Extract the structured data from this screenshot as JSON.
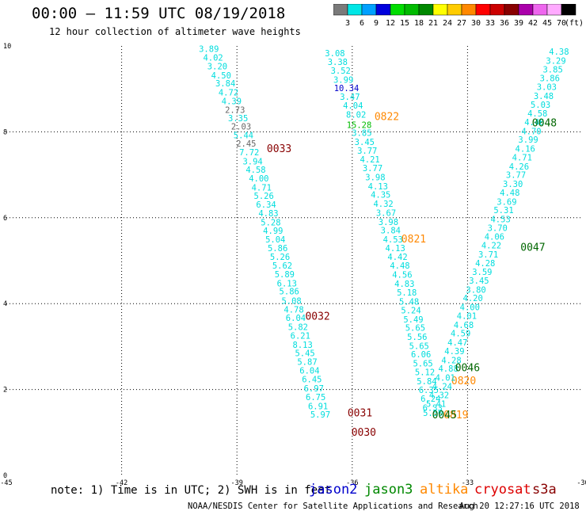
{
  "header": {
    "title": "00:00 — 11:59 UTC 08/19/2018",
    "subtitle": "12 hour collection of altimeter wave heights"
  },
  "color_scale": {
    "labels": [
      "3",
      "6",
      "9",
      "12",
      "15",
      "18",
      "21",
      "24",
      "27",
      "30",
      "33",
      "36",
      "39",
      "42",
      "45",
      "70"
    ],
    "unit": "(ft)",
    "colors": [
      "#7a7a7a",
      "#00e6e6",
      "#00a0ff",
      "#0000dd",
      "#00dd00",
      "#00bb00",
      "#008800",
      "#ffff00",
      "#ffcc00",
      "#ff8800",
      "#ff0000",
      "#cc0000",
      "#880000",
      "#aa00aa",
      "#ee66ee",
      "#ffaaff",
      "#000000"
    ]
  },
  "footer": {
    "note": "note: 1) Time is in UTC; 2) SWH is in feet",
    "satellites": [
      {
        "name": "jason2",
        "color": "#0000cc"
      },
      {
        "name": "jason3",
        "color": "#008800"
      },
      {
        "name": "altika",
        "color": "#ff8800"
      },
      {
        "name": "cryosat",
        "color": "#dd0000"
      },
      {
        "name": "s3a",
        "color": "#880000"
      }
    ],
    "credit": "NOAA/NESDIS Center for Satellite Applications and Research",
    "stamp": "Aug 20 12:27:16 UTC 2018"
  },
  "chart_data": {
    "type": "scatter",
    "title": "12 hour collection of altimeter wave heights",
    "xlim": [
      -45,
      -30
    ],
    "ylim": [
      0,
      10
    ],
    "x_ticks": [
      -45,
      -42,
      -39,
      -36,
      -33,
      -30
    ],
    "y_ticks": [
      0,
      2,
      4,
      6,
      8,
      10
    ],
    "grid": true,
    "colors": {
      "cyan": "#00dddd",
      "gray": "#666666",
      "blue": "#0000cc",
      "lgreen": "#00bb00",
      "dgreen": "#006600",
      "orange": "#ff8800",
      "dred": "#880000"
    },
    "series": [
      {
        "name": "0033",
        "color": "cyan",
        "points": [
          [
            -39.73,
            9.92,
            "3.89"
          ],
          [
            -39.62,
            9.71,
            "4.02"
          ],
          [
            -39.51,
            9.51,
            "3.20"
          ],
          [
            -39.41,
            9.3,
            "4.50"
          ],
          [
            -39.3,
            9.11,
            "3.84"
          ],
          [
            -39.22,
            8.9,
            "4.72"
          ],
          [
            -39.14,
            8.7,
            "4.39"
          ],
          [
            -39.05,
            8.5,
            "2.73"
          ],
          [
            -38.97,
            8.3,
            "3.35"
          ],
          [
            -38.89,
            8.11,
            "2.03"
          ],
          [
            -38.83,
            7.91,
            "5.44"
          ],
          [
            -38.76,
            7.71,
            "2.45"
          ],
          [
            -38.68,
            7.51,
            "7.72"
          ],
          [
            -38.59,
            7.3,
            "3.94"
          ],
          [
            -38.51,
            7.1,
            "4.58"
          ],
          [
            -38.43,
            6.9,
            "4.00"
          ],
          [
            -38.36,
            6.69,
            "4.71"
          ],
          [
            -38.3,
            6.49,
            "5.26"
          ],
          [
            -38.24,
            6.29,
            "6.34"
          ],
          [
            -38.18,
            6.09,
            "4.83"
          ],
          [
            -38.12,
            5.88,
            "5.28"
          ],
          [
            -38.06,
            5.68,
            "4.99"
          ],
          [
            -38.0,
            5.48,
            "5.04"
          ],
          [
            -37.94,
            5.28,
            "5.86"
          ],
          [
            -37.88,
            5.07,
            "5.26"
          ],
          [
            -37.82,
            4.87,
            "5.62"
          ],
          [
            -37.76,
            4.67,
            "5.89"
          ],
          [
            -37.7,
            4.46,
            "6.13"
          ],
          [
            -37.64,
            4.27,
            "5.86"
          ],
          [
            -37.58,
            4.05,
            "5.08"
          ],
          [
            -37.52,
            3.85,
            "4.78"
          ],
          [
            -37.47,
            3.65,
            "6.04"
          ],
          [
            -37.41,
            3.44,
            "5.82"
          ],
          [
            -37.35,
            3.24,
            "6.21"
          ],
          [
            -37.29,
            3.03,
            "8.13"
          ],
          [
            -37.23,
            2.83,
            "5.45"
          ],
          [
            -37.17,
            2.63,
            "5.87"
          ],
          [
            -37.11,
            2.43,
            "6.04"
          ],
          [
            -37.05,
            2.22,
            "6.45"
          ],
          [
            -37.0,
            2.01,
            "6.97"
          ],
          [
            -36.95,
            1.81,
            "6.75"
          ],
          [
            -36.89,
            1.6,
            "6.91"
          ],
          [
            -36.83,
            1.4,
            "5.97"
          ]
        ],
        "gray_idx": [
          7,
          9,
          11
        ],
        "label": {
          "text": "0033",
          "x": -37.9,
          "y": 7.6,
          "color": "dred"
        },
        "extra_labels": [
          {
            "text": "0032",
            "x": -36.9,
            "y": 3.7,
            "color": "dred"
          },
          {
            "text": "0031",
            "x": -35.8,
            "y": 1.45,
            "color": "dred"
          },
          {
            "text": "0030",
            "x": -35.7,
            "y": 1.0,
            "color": "dred"
          }
        ]
      },
      {
        "name": "0822",
        "color": "cyan",
        "points": [
          [
            -36.45,
            9.82,
            "3.08"
          ],
          [
            -36.38,
            9.61,
            "3.38"
          ],
          [
            -36.3,
            9.41,
            "3.52"
          ],
          [
            -36.23,
            9.2,
            "3.99"
          ],
          [
            -36.15,
            9.0,
            "10.34"
          ],
          [
            -36.06,
            8.8,
            "3.47"
          ],
          [
            -35.98,
            8.6,
            "4.04"
          ],
          [
            -35.9,
            8.39,
            "8.02"
          ],
          [
            -35.82,
            8.15,
            "15.28"
          ],
          [
            -35.75,
            7.96,
            "3.85"
          ],
          [
            -35.68,
            7.75,
            "3.45"
          ],
          [
            -35.61,
            7.55,
            "3.77"
          ],
          [
            -35.54,
            7.34,
            "4.21"
          ],
          [
            -35.47,
            7.14,
            "3.77"
          ],
          [
            -35.4,
            6.93,
            "3.98"
          ],
          [
            -35.33,
            6.72,
            "4.13"
          ],
          [
            -35.26,
            6.52,
            "4.35"
          ],
          [
            -35.19,
            6.31,
            "4.32"
          ],
          [
            -35.12,
            6.1,
            "3.67"
          ],
          [
            -35.06,
            5.89,
            "3.98"
          ],
          [
            -35.0,
            5.69,
            "3.84"
          ],
          [
            -34.94,
            5.48,
            "4.53"
          ],
          [
            -34.88,
            5.28,
            "4.13"
          ],
          [
            -34.82,
            5.07,
            "4.42"
          ],
          [
            -34.76,
            4.87,
            "4.48"
          ],
          [
            -34.7,
            4.66,
            "4.56"
          ],
          [
            -34.64,
            4.45,
            "4.83"
          ],
          [
            -34.58,
            4.24,
            "5.18"
          ],
          [
            -34.52,
            4.03,
            "5.48"
          ],
          [
            -34.47,
            3.83,
            "5.24"
          ],
          [
            -34.41,
            3.62,
            "5.49"
          ],
          [
            -34.36,
            3.42,
            "5.65"
          ],
          [
            -34.31,
            3.21,
            "5.56"
          ],
          [
            -34.26,
            3.0,
            "5.65"
          ],
          [
            -34.21,
            2.8,
            "6.06"
          ],
          [
            -34.16,
            2.59,
            "5.65"
          ],
          [
            -34.11,
            2.39,
            "5.12"
          ],
          [
            -34.06,
            2.18,
            "5.84"
          ],
          [
            -34.01,
            1.97,
            "6.35"
          ],
          [
            -33.96,
            1.77,
            "6.24"
          ],
          [
            -33.91,
            1.56,
            "6.33"
          ]
        ],
        "blue_idx": [
          4
        ],
        "green_idx": [
          8
        ],
        "label": {
          "text": "0822",
          "x": -35.1,
          "y": 8.35,
          "color": "orange"
        },
        "extra_labels": [
          {
            "text": "0821",
            "x": -34.4,
            "y": 5.5,
            "color": "orange"
          },
          {
            "text": "0820",
            "x": -33.1,
            "y": 2.2,
            "color": "orange"
          },
          {
            "text": "0819",
            "x": -33.3,
            "y": 1.4,
            "color": "orange"
          }
        ]
      },
      {
        "name": "0048",
        "color": "cyan",
        "points": [
          [
            -30.62,
            9.85,
            "4.38"
          ],
          [
            -30.7,
            9.64,
            "3.29"
          ],
          [
            -30.78,
            9.44,
            "3.85"
          ],
          [
            -30.86,
            9.23,
            "3.86"
          ],
          [
            -30.94,
            9.03,
            "3.03"
          ],
          [
            -31.02,
            8.82,
            "3.48"
          ],
          [
            -31.1,
            8.62,
            "5.03"
          ],
          [
            -31.18,
            8.41,
            "4.58"
          ],
          [
            -31.26,
            8.21,
            "4.46"
          ],
          [
            -31.34,
            8.0,
            "4.70"
          ],
          [
            -31.42,
            7.8,
            "3.99"
          ],
          [
            -31.5,
            7.59,
            "4.16"
          ],
          [
            -31.58,
            7.39,
            "4.71"
          ],
          [
            -31.66,
            7.18,
            "4.26"
          ],
          [
            -31.74,
            6.98,
            "3.77"
          ],
          [
            -31.82,
            6.77,
            "3.30"
          ],
          [
            -31.9,
            6.57,
            "4.48"
          ],
          [
            -31.98,
            6.36,
            "3.69"
          ],
          [
            -32.06,
            6.16,
            "5.31"
          ],
          [
            -32.14,
            5.95,
            "4.53"
          ],
          [
            -32.22,
            5.75,
            "3.70"
          ],
          [
            -32.3,
            5.54,
            "4.06"
          ],
          [
            -32.38,
            5.34,
            "4.22"
          ],
          [
            -32.46,
            5.13,
            "3.71"
          ],
          [
            -32.54,
            4.93,
            "4.28"
          ],
          [
            -32.62,
            4.72,
            "3.59"
          ],
          [
            -32.7,
            4.52,
            "3.45"
          ],
          [
            -32.78,
            4.31,
            "3.80"
          ],
          [
            -32.86,
            4.11,
            "4.20"
          ],
          [
            -32.94,
            3.9,
            "4.00"
          ],
          [
            -33.02,
            3.7,
            "4.01"
          ],
          [
            -33.1,
            3.49,
            "4.68"
          ],
          [
            -33.18,
            3.29,
            "4.59"
          ],
          [
            -33.26,
            3.08,
            "4.47"
          ],
          [
            -33.34,
            2.88,
            "4.39"
          ],
          [
            -33.42,
            2.67,
            "4.28"
          ],
          [
            -33.5,
            2.47,
            "4.88"
          ],
          [
            -33.58,
            2.26,
            "4.01"
          ],
          [
            -33.66,
            2.06,
            "4.24"
          ],
          [
            -33.74,
            1.85,
            "4.32"
          ],
          [
            -33.82,
            1.65,
            "5.41"
          ],
          [
            -33.9,
            1.44,
            "5.50"
          ]
        ],
        "label": {
          "text": "0048",
          "x": -31.0,
          "y": 8.2,
          "color": "dgreen"
        },
        "extra_labels": [
          {
            "text": "0047",
            "x": -31.3,
            "y": 5.3,
            "color": "dgreen"
          },
          {
            "text": "0046",
            "x": -33.0,
            "y": 2.5,
            "color": "dgreen"
          },
          {
            "text": "0045",
            "x": -33.6,
            "y": 1.4,
            "color": "dgreen"
          }
        ]
      }
    ]
  }
}
